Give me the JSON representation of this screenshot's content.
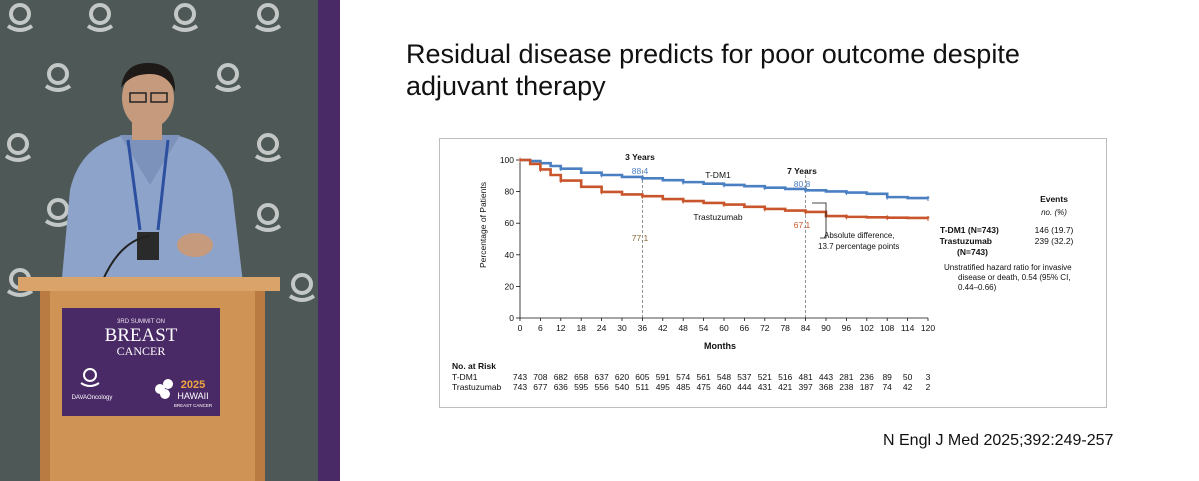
{
  "slide": {
    "title_line1": "Residual disease predicts for poor outcome despite",
    "title_line2": "adjuvant therapy",
    "citation": "N Engl J Med 2025;392:249-257"
  },
  "podium": {
    "event_line1": "3RD SUMMIT ON",
    "event_line2": "BREAST",
    "event_line3": "CANCER",
    "org": "DAVAOncology",
    "year": "2025",
    "place": "HAWAII",
    "place_sub": "BREAST CANCER"
  },
  "colors": {
    "tdm1": "#4a7fc1",
    "trastuzumab": "#c8552b",
    "stage_bg": "#4c5654",
    "divider": "#4a2a66",
    "banner": "#4a2a66"
  },
  "chart_data": {
    "type": "line",
    "title": "",
    "xlabel": "Months",
    "ylabel": "Percentage of Patients",
    "xlim": [
      0,
      120
    ],
    "ylim": [
      0,
      100
    ],
    "xticks": [
      0,
      6,
      12,
      18,
      24,
      30,
      36,
      42,
      48,
      54,
      60,
      66,
      72,
      78,
      84,
      90,
      96,
      102,
      108,
      114,
      120
    ],
    "yticks": [
      0,
      20,
      40,
      60,
      80,
      100
    ],
    "x": [
      0,
      3,
      6,
      9,
      12,
      18,
      24,
      30,
      36,
      42,
      48,
      54,
      60,
      66,
      72,
      78,
      84,
      90,
      96,
      102,
      108,
      114,
      120
    ],
    "series": [
      {
        "name": "T-DM1",
        "label": "T-DM1",
        "values": [
          100,
          99.3,
          98,
          96.2,
          94.5,
          92,
          90.5,
          89.3,
          88.4,
          87.2,
          86,
          85,
          84.2,
          83.4,
          82.5,
          81.7,
          80.8,
          80.1,
          79.4,
          78.6,
          76.5,
          75.9,
          75.6
        ]
      },
      {
        "name": "Trastuzumab",
        "label": "Trastuzumab",
        "values": [
          100,
          97.5,
          94,
          90.5,
          87,
          83,
          79.8,
          78.2,
          77.1,
          75.3,
          74,
          72.8,
          71.8,
          70.4,
          69,
          68,
          67.1,
          64.5,
          64,
          63.7,
          63.5,
          63.3,
          63
        ]
      }
    ],
    "annotations": {
      "y3_label": "3 Years",
      "y3_tdm1": "88.4",
      "y3_trast": "77.1",
      "y7_label": "7 Years",
      "y7_tdm1": "80.8",
      "y7_trast": "67.1",
      "diff_line1": "Absolute difference,",
      "diff_line2": "13.7 percentage points"
    },
    "events": {
      "header": "Events",
      "subheader": "no. (%)",
      "tdm1_label": "T-DM1 (N=743)",
      "tdm1_value": "146 (19.7)",
      "trast_label1": "Trastuzumab",
      "trast_label2": "(N=743)",
      "trast_value": "239 (32.2)",
      "hr_line1": "Unstratified hazard ratio for invasive",
      "hr_line2": "disease or death, 0.54 (95% CI,",
      "hr_line3": "0.44–0.66)"
    },
    "risk_table": {
      "title": "No. at Risk",
      "rows": [
        {
          "label": "T-DM1",
          "values": [
            743,
            708,
            682,
            658,
            637,
            620,
            605,
            591,
            574,
            561,
            548,
            537,
            521,
            516,
            481,
            443,
            281,
            236,
            89,
            50,
            3
          ]
        },
        {
          "label": "Trastuzumab",
          "values": [
            743,
            677,
            636,
            595,
            556,
            540,
            511,
            495,
            485,
            475,
            460,
            444,
            431,
            421,
            397,
            368,
            238,
            187,
            74,
            42,
            2
          ]
        }
      ]
    }
  }
}
